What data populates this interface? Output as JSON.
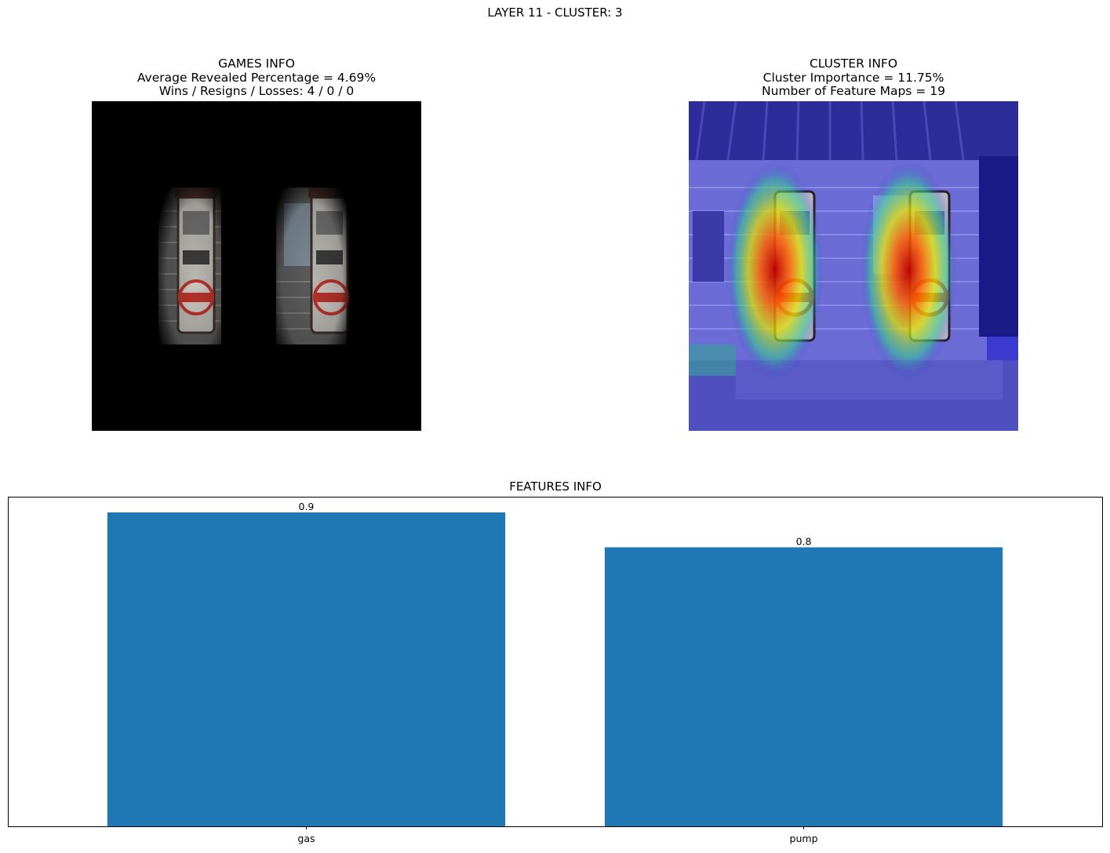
{
  "suptitle": "LAYER 11 - CLUSTER: 3",
  "games_info": {
    "title": "GAMES INFO",
    "line1": "Average Revealed Percentage = 4.69%",
    "line2": "Wins / Resigns / Losses: 4 / 0 / 0"
  },
  "cluster_info": {
    "title": "CLUSTER INFO",
    "line1": "Cluster Importance = 11.75%",
    "line2": "Number of Feature Maps = 19"
  },
  "colors": {
    "bar": "#1f77b4",
    "masked_background": "#000000"
  },
  "chart_data": {
    "type": "bar",
    "title": "FEATURES INFO",
    "categories": [
      "gas",
      "pump"
    ],
    "values": [
      0.9,
      0.8
    ],
    "data_labels": [
      "0.9",
      "0.8"
    ],
    "ylim": [
      0,
      0.945
    ],
    "yticks_visible": false,
    "grid": false
  }
}
